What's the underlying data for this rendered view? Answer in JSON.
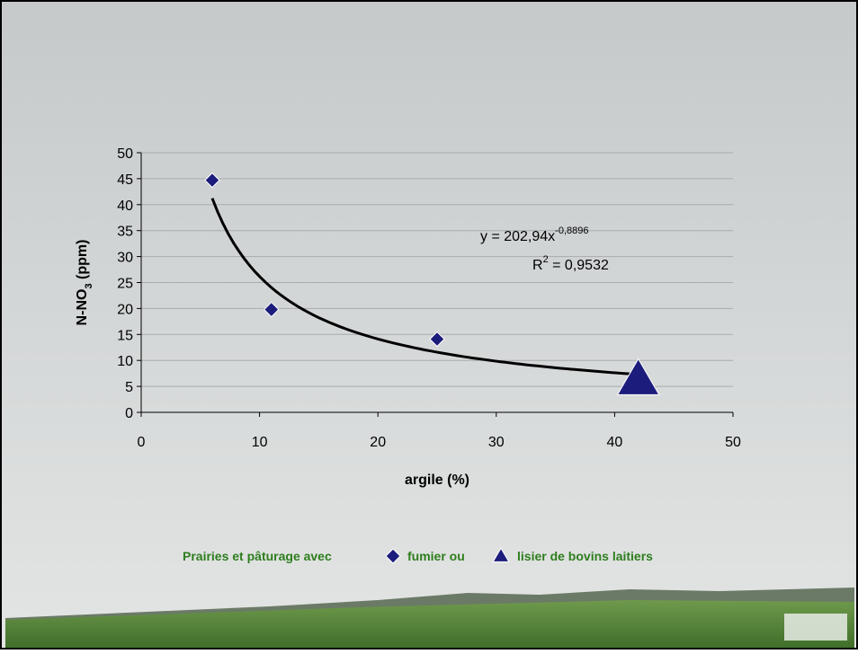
{
  "chart_data": {
    "type": "scatter",
    "x_label": "argile (%)",
    "y_label": [
      "N-NO",
      "3",
      " (ppm)"
    ],
    "xlim": [
      0,
      50
    ],
    "xticks": [
      0,
      10,
      20,
      30,
      40,
      50
    ],
    "ylim": [
      0,
      50
    ],
    "yticks": [
      0,
      5,
      10,
      15,
      20,
      25,
      30,
      35,
      40,
      45,
      50
    ],
    "grid": true,
    "legend_title": "Prairies et pâturage avec",
    "series": [
      {
        "name": "fumier ou",
        "marker": "diamond",
        "color": "#1c1c7c",
        "x": [
          6,
          11,
          25
        ],
        "values": [
          44.7,
          19.8,
          14.1
        ]
      },
      {
        "name": "lisier de bovins laitiers",
        "marker": "triangle",
        "color": "#1c1c7c",
        "x": [
          42
        ],
        "values": [
          6.3
        ]
      }
    ],
    "trendline": {
      "type": "power",
      "a": 202.94,
      "b": -0.8896,
      "color": "#000000",
      "equation": [
        "y = 202,94x",
        "-0,8896"
      ],
      "r_squared": [
        "R",
        "2",
        " = 0,9532"
      ]
    }
  }
}
